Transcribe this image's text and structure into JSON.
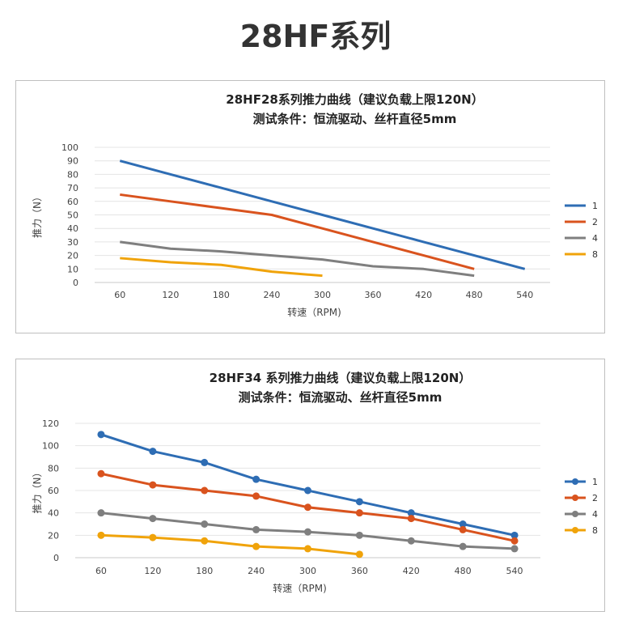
{
  "page": {
    "title": "28HF系列"
  },
  "chart_data": [
    {
      "type": "line",
      "title": "28HF28系列推力曲线（建议负载上限120N）",
      "subtitle": "测试条件：恒流驱动、丝杆直径5mm",
      "xlabel": "转速（RPM)",
      "ylabel": "推力（N）",
      "categories": [
        "60",
        "120",
        "180",
        "240",
        "300",
        "360",
        "420",
        "480",
        "540"
      ],
      "ylim": [
        0,
        100
      ],
      "yticks": [
        0,
        10,
        20,
        30,
        40,
        50,
        60,
        70,
        80,
        90,
        100
      ],
      "grid": true,
      "markers": false,
      "legend_position": "right",
      "series": [
        {
          "name": "1",
          "color": "#2e6db4",
          "values": [
            90,
            80,
            70,
            60,
            50,
            40,
            30,
            20,
            10
          ]
        },
        {
          "name": "2",
          "color": "#d9531e",
          "values": [
            65,
            60,
            55,
            50,
            40,
            30,
            20,
            10,
            null
          ]
        },
        {
          "name": "4",
          "color": "#7f7f7f",
          "values": [
            30,
            25,
            23,
            20,
            17,
            12,
            10,
            5,
            null
          ]
        },
        {
          "name": "8",
          "color": "#f0a30a",
          "values": [
            18,
            15,
            13,
            8,
            5,
            null,
            null,
            null,
            null
          ]
        }
      ]
    },
    {
      "type": "line",
      "title": "28HF34 系列推力曲线（建议负载上限120N）",
      "subtitle": "测试条件：恒流驱动、丝杆直径5mm",
      "xlabel": "转速（RPM)",
      "ylabel": "推力（N）",
      "categories": [
        "60",
        "120",
        "180",
        "240",
        "300",
        "360",
        "420",
        "480",
        "540"
      ],
      "ylim": [
        0,
        120
      ],
      "yticks": [
        0,
        20,
        40,
        60,
        80,
        100,
        120
      ],
      "grid": true,
      "markers": true,
      "legend_position": "right",
      "series": [
        {
          "name": "1",
          "color": "#2e6db4",
          "values": [
            110,
            95,
            85,
            70,
            60,
            50,
            40,
            30,
            20
          ]
        },
        {
          "name": "2",
          "color": "#d9531e",
          "values": [
            75,
            65,
            60,
            55,
            45,
            40,
            35,
            25,
            15
          ]
        },
        {
          "name": "4",
          "color": "#7f7f7f",
          "values": [
            40,
            35,
            30,
            25,
            23,
            20,
            15,
            10,
            8
          ]
        },
        {
          "name": "8",
          "color": "#f0a30a",
          "values": [
            20,
            18,
            15,
            10,
            8,
            3,
            null,
            null,
            null
          ]
        }
      ]
    }
  ]
}
